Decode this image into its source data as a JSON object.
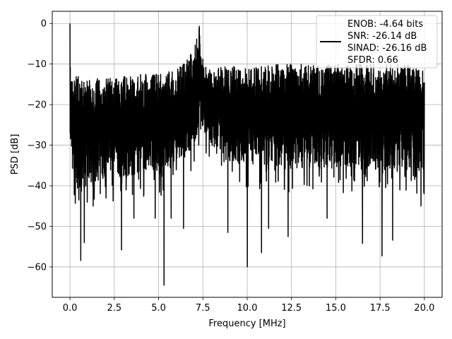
{
  "chart_data": {
    "type": "line",
    "title": "",
    "xlabel": "Frequency [MHz]",
    "ylabel": "PSD [dB]",
    "xlim": [
      -1.0,
      21.0
    ],
    "ylim": [
      -67.5,
      3.0
    ],
    "xticks": [
      0.0,
      2.5,
      5.0,
      7.5,
      10.0,
      12.5,
      15.0,
      17.5,
      20.0
    ],
    "xtick_labels": [
      "0.0",
      "2.5",
      "5.0",
      "7.5",
      "10.0",
      "12.5",
      "15.0",
      "17.5",
      "20.0"
    ],
    "yticks": [
      0,
      -10,
      -20,
      -30,
      -40,
      -50,
      -60
    ],
    "ytick_labels": [
      "0",
      "−10",
      "−20",
      "−30",
      "−40",
      "−50",
      "−60"
    ],
    "grid": true,
    "legend_position": "top-right",
    "legend_lines": [
      "ENOB: -4.64 bits",
      "SNR: -26.14 dB",
      "SINAD: -26.16 dB",
      "SFDR: 0.66"
    ],
    "line_color": "#000000",
    "series": [
      {
        "x": [
          0.0,
          0.05,
          0.1,
          0.5,
          1.0,
          2.0,
          3.0,
          4.0,
          5.0,
          6.0,
          6.5,
          7.0,
          7.3,
          7.6,
          8.0,
          9.0,
          10.0,
          11.0,
          12.0,
          13.0,
          14.0,
          15.0,
          16.0,
          17.0,
          18.0,
          19.0,
          20.0
        ],
        "upper": [
          0.0,
          -14.0,
          -13.0,
          -13.0,
          -13.5,
          -13.5,
          -13.0,
          -12.5,
          -12.5,
          -11.5,
          -9.5,
          -6.5,
          -0.7,
          -10.5,
          -11.0,
          -10.5,
          -10.5,
          -10.5,
          -10.0,
          -10.0,
          -10.0,
          -10.0,
          -10.0,
          -10.0,
          -10.0,
          -10.0,
          -11.0
        ],
        "lower": [
          -27.0,
          -34.0,
          -40.0,
          -42.0,
          -40.0,
          -38.0,
          -38.0,
          -37.0,
          -37.0,
          -35.0,
          -33.0,
          -30.0,
          -26.0,
          -27.0,
          -30.0,
          -34.0,
          -35.0,
          -35.0,
          -36.0,
          -36.0,
          -36.0,
          -36.0,
          -36.0,
          -36.0,
          -36.0,
          -36.0,
          -36.0
        ],
        "dips": [
          [
            0.6,
            -58.4
          ],
          [
            0.8,
            -54.0
          ],
          [
            1.3,
            -45.0
          ],
          [
            2.9,
            -55.8
          ],
          [
            3.6,
            -48.0
          ],
          [
            4.8,
            -48.0
          ],
          [
            5.3,
            -64.5
          ],
          [
            5.7,
            -48.0
          ],
          [
            6.4,
            -50.5
          ],
          [
            8.9,
            -51.5
          ],
          [
            10.0,
            -60.0
          ],
          [
            10.8,
            -56.5
          ],
          [
            11.2,
            -50.5
          ],
          [
            12.3,
            -52.5
          ],
          [
            14.5,
            -48.0
          ],
          [
            16.5,
            -54.2
          ],
          [
            17.6,
            -57.3
          ],
          [
            18.2,
            -53.4
          ],
          [
            19.8,
            -45.0
          ]
        ]
      }
    ]
  }
}
